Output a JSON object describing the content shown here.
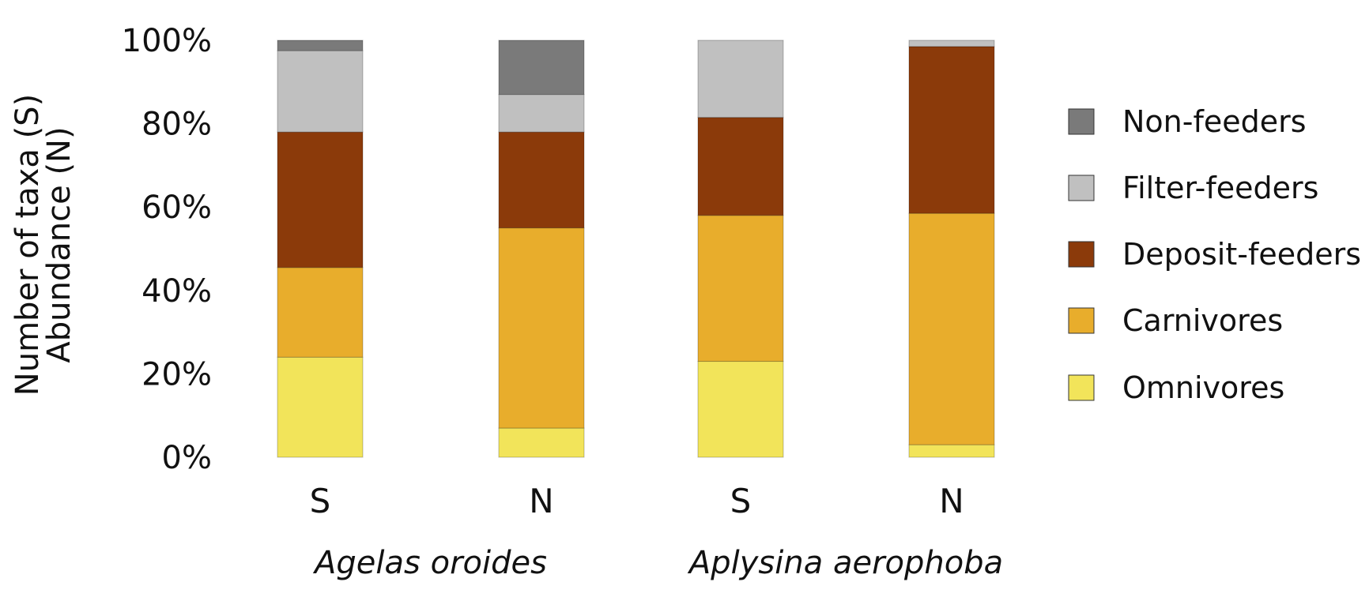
{
  "chart_data": {
    "type": "bar",
    "stacked": true,
    "ylabel_lines": [
      "Number of taxa (S)",
      "Abundance (N)"
    ],
    "ylim": [
      0,
      100
    ],
    "y_ticks": [
      "0%",
      "20%",
      "40%",
      "60%",
      "80%",
      "100%"
    ],
    "y_tick_values": [
      0,
      20,
      40,
      60,
      80,
      100
    ],
    "grid": false,
    "legend_position": "right",
    "categories": [
      "S",
      "N",
      "S",
      "N"
    ],
    "groups": [
      {
        "name": "Agelas oroides",
        "categories": [
          0,
          1
        ]
      },
      {
        "name": "Aplysina aerophoba",
        "categories": [
          2,
          3
        ]
      }
    ],
    "series": [
      {
        "name": "Omnivores",
        "color": "#F2E45A",
        "values": [
          24,
          7,
          23,
          3
        ]
      },
      {
        "name": "Carnivores",
        "color": "#E8AD2C",
        "values": [
          21.5,
          48,
          35,
          55.5
        ]
      },
      {
        "name": "Deposit-feeders",
        "color": "#8B3A0A",
        "values": [
          32.5,
          23,
          23.5,
          40
        ]
      },
      {
        "name": "Filter-feeders",
        "color": "#C0C0C0",
        "values": [
          19.5,
          9,
          18.5,
          1.5
        ]
      },
      {
        "name": "Non-feeders",
        "color": "#7A7A7A",
        "values": [
          2.5,
          13,
          0,
          0
        ]
      }
    ],
    "legend_order": [
      "Non-feeders",
      "Filter-feeders",
      "Deposit-feeders",
      "Carnivores",
      "Omnivores"
    ]
  }
}
